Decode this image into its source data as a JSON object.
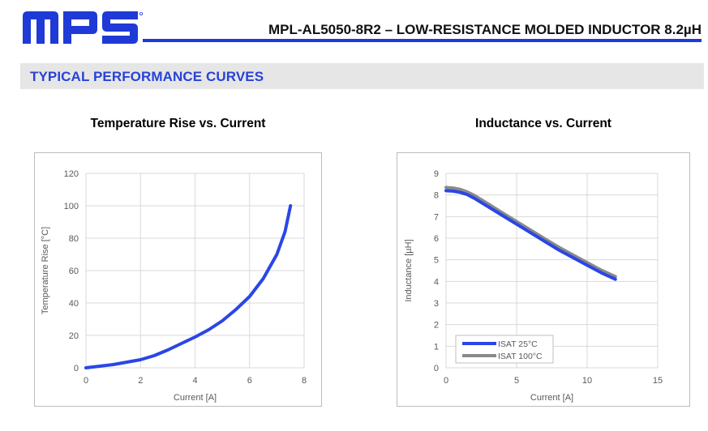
{
  "header": {
    "logo_text": "MPS",
    "title": "MPL-AL5050-8R2 – LOW-RESISTANCE MOLDED INDUCTOR 8.2µH",
    "brand_color": "#1f3ad6"
  },
  "section": {
    "title": "TYPICAL PERFORMANCE CURVES"
  },
  "chart_data": [
    {
      "type": "line",
      "title": "Temperature Rise vs. Current",
      "xlabel": "Current [A]",
      "ylabel": "Temperature Rise  [°C]",
      "xlim": [
        0,
        8
      ],
      "ylim": [
        0,
        120
      ],
      "xticks": [
        "0",
        "2",
        "4",
        "6",
        "8"
      ],
      "yticks": [
        "0",
        "20",
        "40",
        "60",
        "80",
        "100",
        "120"
      ],
      "grid": true,
      "series": [
        {
          "color": "#2a46e6",
          "x": [
            0,
            0.5,
            1,
            1.5,
            2,
            2.5,
            3,
            3.5,
            4,
            4.5,
            5,
            5.5,
            6,
            6.5,
            7,
            7.3,
            7.5
          ],
          "y": [
            0,
            1,
            2,
            3.5,
            5,
            7.5,
            11,
            15,
            19,
            23.5,
            29,
            36,
            44,
            55,
            70,
            84,
            100
          ]
        }
      ]
    },
    {
      "type": "line",
      "title": "Inductance vs. Current",
      "xlabel": "Current [A]",
      "ylabel": "Inductance [µH]",
      "xlim": [
        0,
        15
      ],
      "ylim": [
        0,
        9
      ],
      "xticks": [
        "0",
        "5",
        "10",
        "15"
      ],
      "yticks": [
        "0",
        "1",
        "2",
        "3",
        "4",
        "5",
        "6",
        "7",
        "8",
        "9"
      ],
      "grid": true,
      "legend_position": "bottom-left",
      "series": [
        {
          "name": "ISAT 25°C",
          "color": "#2a46e6",
          "x": [
            0,
            0.5,
            1,
            1.5,
            2,
            3,
            4,
            5,
            6,
            7,
            8,
            9,
            10,
            11,
            12
          ],
          "y": [
            8.2,
            8.18,
            8.12,
            8.02,
            7.85,
            7.45,
            7.05,
            6.65,
            6.25,
            5.85,
            5.45,
            5.1,
            4.75,
            4.4,
            4.1
          ]
        },
        {
          "name": "ISAT 100°C",
          "color": "#8a8a8a",
          "x": [
            0,
            0.5,
            1,
            1.5,
            2,
            3,
            4,
            5,
            6,
            7,
            8,
            9,
            10,
            11,
            12
          ],
          "y": [
            8.35,
            8.32,
            8.26,
            8.14,
            7.98,
            7.58,
            7.17,
            6.77,
            6.37,
            5.97,
            5.58,
            5.22,
            4.87,
            4.52,
            4.22
          ]
        }
      ]
    }
  ]
}
